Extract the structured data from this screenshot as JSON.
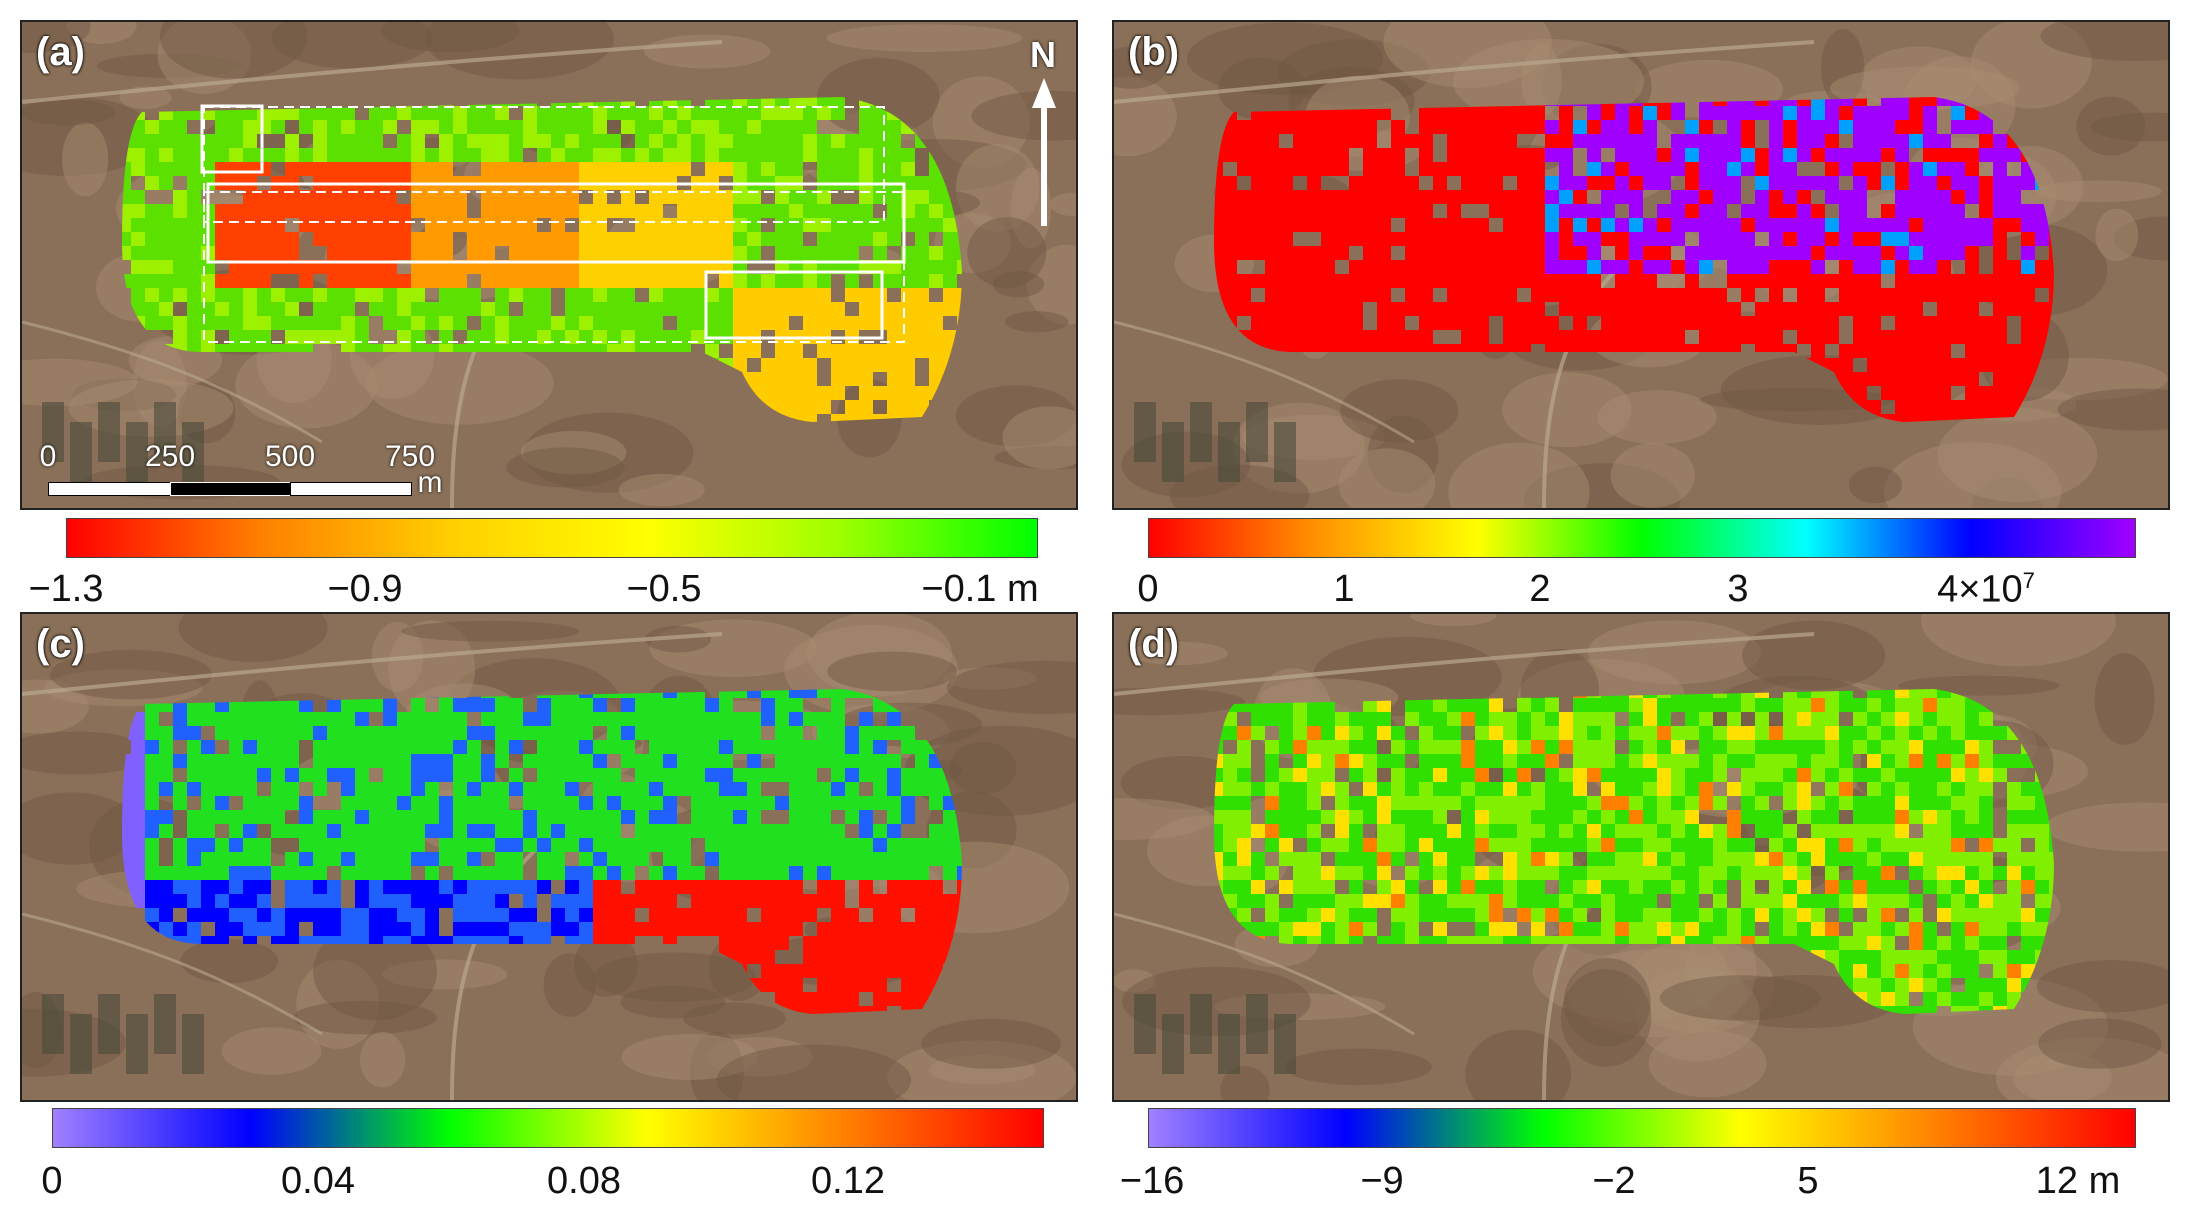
{
  "panels": [
    {
      "label": "(a)",
      "scheme": "a"
    },
    {
      "label": "(b)",
      "scheme": "b"
    },
    {
      "label": "(c)",
      "scheme": "c"
    },
    {
      "label": "(d)",
      "scheme": "d"
    }
  ],
  "north_label": "N",
  "scale_bar": {
    "ticks": [
      "0",
      "250",
      "500",
      "750"
    ],
    "unit": "m"
  },
  "colorbars": {
    "a": {
      "ticks": [
        "−1.3",
        "−0.9",
        "−0.5",
        "−0.1 m"
      ]
    },
    "b": {
      "ticks": [
        "0",
        "1",
        "2",
        "3"
      ],
      "last_base": "4×10",
      "last_exp": "7"
    },
    "c": {
      "ticks": [
        "0",
        "0.04",
        "0.08",
        "0.12"
      ]
    },
    "d": {
      "ticks": [
        "−16",
        "−9",
        "−2",
        "5",
        "12 m"
      ]
    }
  },
  "colors": {
    "terrain": "#8a7058",
    "gradient_a": [
      "#ff0000",
      "#ff8000",
      "#ffd000",
      "#ffff00",
      "#9cff00",
      "#00ff00"
    ],
    "gradient_b": [
      "#ff0000",
      "#ff9000",
      "#ffff00",
      "#00ff00",
      "#00ffff",
      "#0000ff",
      "#a000ff"
    ],
    "gradient_c": [
      "#a080ff",
      "#0000ff",
      "#00ff00",
      "#ffff00",
      "#ff8000",
      "#ff0000"
    ],
    "gradient_d": [
      "#a080ff",
      "#0000ff",
      "#00ff00",
      "#ffff00",
      "#ff8000",
      "#ff0000"
    ]
  }
}
